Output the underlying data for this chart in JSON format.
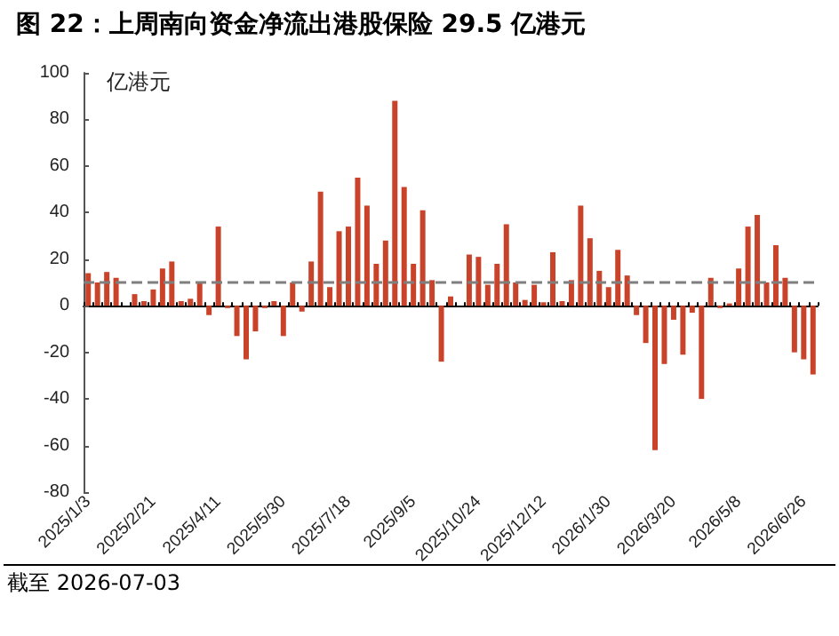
{
  "chart_data": {
    "type": "bar",
    "title": "图 22：上周南向资金净流出港股保险 29.5 亿港元",
    "ylabel": "亿港元",
    "annotations": [
      "截至 2026-07-03"
    ],
    "categories": [
      "2025/1/3",
      null,
      null,
      null,
      null,
      null,
      null,
      "2025/2/21",
      null,
      null,
      null,
      null,
      null,
      null,
      "2025/4/11",
      null,
      null,
      null,
      null,
      null,
      null,
      "2025/5/30",
      null,
      null,
      null,
      null,
      null,
      null,
      "2025/7/18",
      null,
      null,
      null,
      null,
      null,
      null,
      "2025/9/5",
      null,
      null,
      null,
      null,
      null,
      null,
      "2025/10/24",
      null,
      null,
      null,
      null,
      null,
      null,
      "2025/12/12",
      null,
      null,
      null,
      null,
      null,
      null,
      "2026/1/30",
      null,
      null,
      null,
      null,
      null,
      null,
      "2026/3/20",
      null,
      null,
      null,
      null,
      null,
      null,
      "2026/5/8",
      null,
      null,
      null,
      null,
      null,
      null,
      "2026/6/26",
      null
    ],
    "values": [
      14,
      10,
      14.5,
      12,
      0,
      5,
      2,
      7,
      16,
      19,
      2,
      3,
      10,
      -4,
      34,
      -1,
      -13,
      -23,
      -11,
      -1,
      2,
      -13,
      10,
      -2.5,
      19,
      49,
      8,
      32,
      34,
      55,
      43,
      18,
      28,
      88,
      51,
      18,
      41,
      11,
      -24,
      4,
      0,
      22,
      21,
      9,
      18,
      35,
      10,
      2.5,
      9,
      1.5,
      23,
      2,
      11,
      43,
      29,
      15,
      8,
      24,
      13,
      -4,
      -16,
      -62,
      -25,
      -6,
      -21,
      -3,
      -40,
      12,
      -1,
      1,
      16,
      34,
      39,
      10,
      26,
      12,
      -20,
      -23,
      -29.5
    ],
    "color": "#c9432a",
    "ylim": [
      -80,
      100
    ],
    "yticks": [
      -80,
      -60,
      -40,
      -20,
      0,
      20,
      40,
      60,
      80,
      100
    ],
    "ref_lines": [
      {
        "axis": "y",
        "value": 10,
        "color": "#7f7f7f",
        "line_style": "dashed"
      }
    ]
  }
}
